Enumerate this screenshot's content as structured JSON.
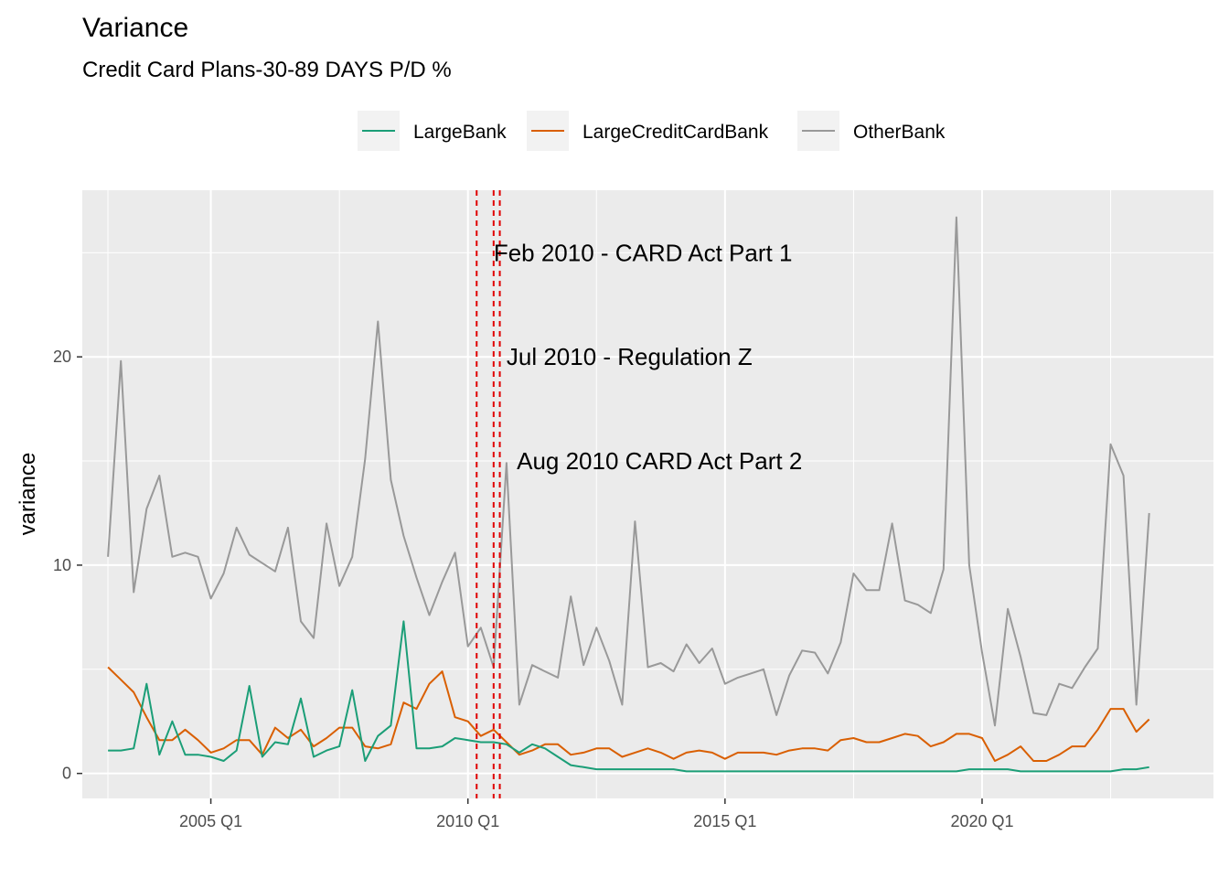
{
  "chart_data": {
    "type": "line",
    "title": "Variance",
    "subtitle": "Credit Card Plans-30-89 DAYS P/D %",
    "xlabel": "",
    "ylabel": "variance",
    "x_tick_labels": [
      "2005 Q1",
      "2010 Q1",
      "2015 Q1",
      "2020 Q1"
    ],
    "y_ticks": [
      0,
      10,
      20
    ],
    "xlim": [
      2002.5,
      2024.5
    ],
    "ylim": [
      -1.2,
      28
    ],
    "legend_position": "top",
    "grid": true,
    "x": [
      2003.0,
      2003.25,
      2003.5,
      2003.75,
      2004.0,
      2004.25,
      2004.5,
      2004.75,
      2005.0,
      2005.25,
      2005.5,
      2005.75,
      2006.0,
      2006.25,
      2006.5,
      2006.75,
      2007.0,
      2007.25,
      2007.5,
      2007.75,
      2008.0,
      2008.25,
      2008.5,
      2008.75,
      2009.0,
      2009.25,
      2009.5,
      2009.75,
      2010.0,
      2010.25,
      2010.5,
      2010.75,
      2011.0,
      2011.25,
      2011.5,
      2011.75,
      2012.0,
      2012.25,
      2012.5,
      2012.75,
      2013.0,
      2013.25,
      2013.5,
      2013.75,
      2014.0,
      2014.25,
      2014.5,
      2014.75,
      2015.0,
      2015.25,
      2015.5,
      2015.75,
      2016.0,
      2016.25,
      2016.5,
      2016.75,
      2017.0,
      2017.25,
      2017.5,
      2017.75,
      2018.0,
      2018.25,
      2018.5,
      2018.75,
      2019.0,
      2019.25,
      2019.5,
      2019.75,
      2020.0,
      2020.25,
      2020.5,
      2020.75,
      2021.0,
      2021.25,
      2021.5,
      2021.75,
      2022.0,
      2022.25,
      2022.5,
      2022.75,
      2023.0,
      2023.25
    ],
    "series": [
      {
        "name": "LargeBank",
        "color": "#1b9e77",
        "values": [
          1.1,
          1.1,
          1.2,
          4.3,
          0.9,
          2.5,
          0.9,
          0.9,
          0.8,
          0.6,
          1.1,
          4.2,
          0.8,
          1.5,
          1.4,
          3.6,
          0.8,
          1.1,
          1.3,
          4.0,
          0.6,
          1.8,
          2.3,
          7.3,
          1.2,
          1.2,
          1.3,
          1.7,
          1.6,
          1.5,
          1.5,
          1.4,
          1.0,
          1.4,
          1.2,
          0.8,
          0.4,
          0.3,
          0.2,
          0.2,
          0.2,
          0.2,
          0.2,
          0.2,
          0.2,
          0.1,
          0.1,
          0.1,
          0.1,
          0.1,
          0.1,
          0.1,
          0.1,
          0.1,
          0.1,
          0.1,
          0.1,
          0.1,
          0.1,
          0.1,
          0.1,
          0.1,
          0.1,
          0.1,
          0.1,
          0.1,
          0.1,
          0.2,
          0.2,
          0.2,
          0.2,
          0.1,
          0.1,
          0.1,
          0.1,
          0.1,
          0.1,
          0.1,
          0.1,
          0.2,
          0.2,
          0.3
        ]
      },
      {
        "name": "LargeCreditCardBank",
        "color": "#d95f02",
        "values": [
          5.1,
          4.5,
          3.9,
          2.7,
          1.6,
          1.6,
          2.1,
          1.6,
          1.0,
          1.2,
          1.6,
          1.6,
          0.9,
          2.2,
          1.7,
          2.1,
          1.3,
          1.7,
          2.2,
          2.2,
          1.3,
          1.2,
          1.4,
          3.4,
          3.1,
          4.3,
          4.9,
          2.7,
          2.5,
          1.8,
          2.1,
          1.5,
          0.9,
          1.1,
          1.4,
          1.4,
          0.9,
          1.0,
          1.2,
          1.2,
          0.8,
          1.0,
          1.2,
          1.0,
          0.7,
          1.0,
          1.1,
          1.0,
          0.7,
          1.0,
          1.0,
          1.0,
          0.9,
          1.1,
          1.2,
          1.2,
          1.1,
          1.6,
          1.7,
          1.5,
          1.5,
          1.7,
          1.9,
          1.8,
          1.3,
          1.5,
          1.9,
          1.9,
          1.7,
          0.6,
          0.9,
          1.3,
          0.6,
          0.6,
          0.9,
          1.3,
          1.3,
          2.1,
          3.1,
          3.1,
          2.0,
          2.6
        ]
      },
      {
        "name": "OtherBank",
        "color": "#999999",
        "values": [
          10.4,
          19.8,
          8.7,
          12.7,
          14.3,
          10.4,
          10.6,
          10.4,
          8.4,
          9.6,
          11.8,
          10.5,
          10.1,
          9.7,
          11.8,
          7.3,
          6.5,
          12.0,
          9.0,
          10.4,
          15.1,
          21.7,
          14.1,
          11.4,
          9.4,
          7.6,
          9.2,
          10.6,
          6.1,
          7.0,
          5.1,
          14.9,
          3.3,
          5.2,
          4.9,
          4.6,
          8.5,
          5.2,
          7.0,
          5.4,
          3.3,
          12.1,
          5.1,
          5.3,
          4.9,
          6.2,
          5.3,
          6.0,
          4.3,
          4.6,
          4.8,
          5.0,
          2.8,
          4.7,
          5.9,
          5.8,
          4.8,
          6.3,
          9.6,
          8.8,
          8.8,
          12.0,
          8.3,
          8.1,
          7.7,
          9.8,
          26.7,
          10.0,
          5.8,
          2.3,
          7.9,
          5.6,
          2.9,
          2.8,
          4.3,
          4.1,
          5.1,
          6.0,
          15.8,
          14.3,
          3.3,
          12.5
        ]
      }
    ],
    "vlines": [
      {
        "x": 2010.17,
        "label": ""
      },
      {
        "x": 2010.5,
        "label": ""
      },
      {
        "x": 2010.62,
        "label": ""
      }
    ],
    "annotations": [
      {
        "label": "Feb 2010 - CARD Act Part 1",
        "x": 2010.5,
        "y": 25
      },
      {
        "label": "Jul 2010 - Regulation Z",
        "x": 2010.75,
        "y": 20
      },
      {
        "label": "Aug 2010 CARD Act Part 2",
        "x": 2010.95,
        "y": 15
      }
    ],
    "vline_color": "#e00000"
  }
}
